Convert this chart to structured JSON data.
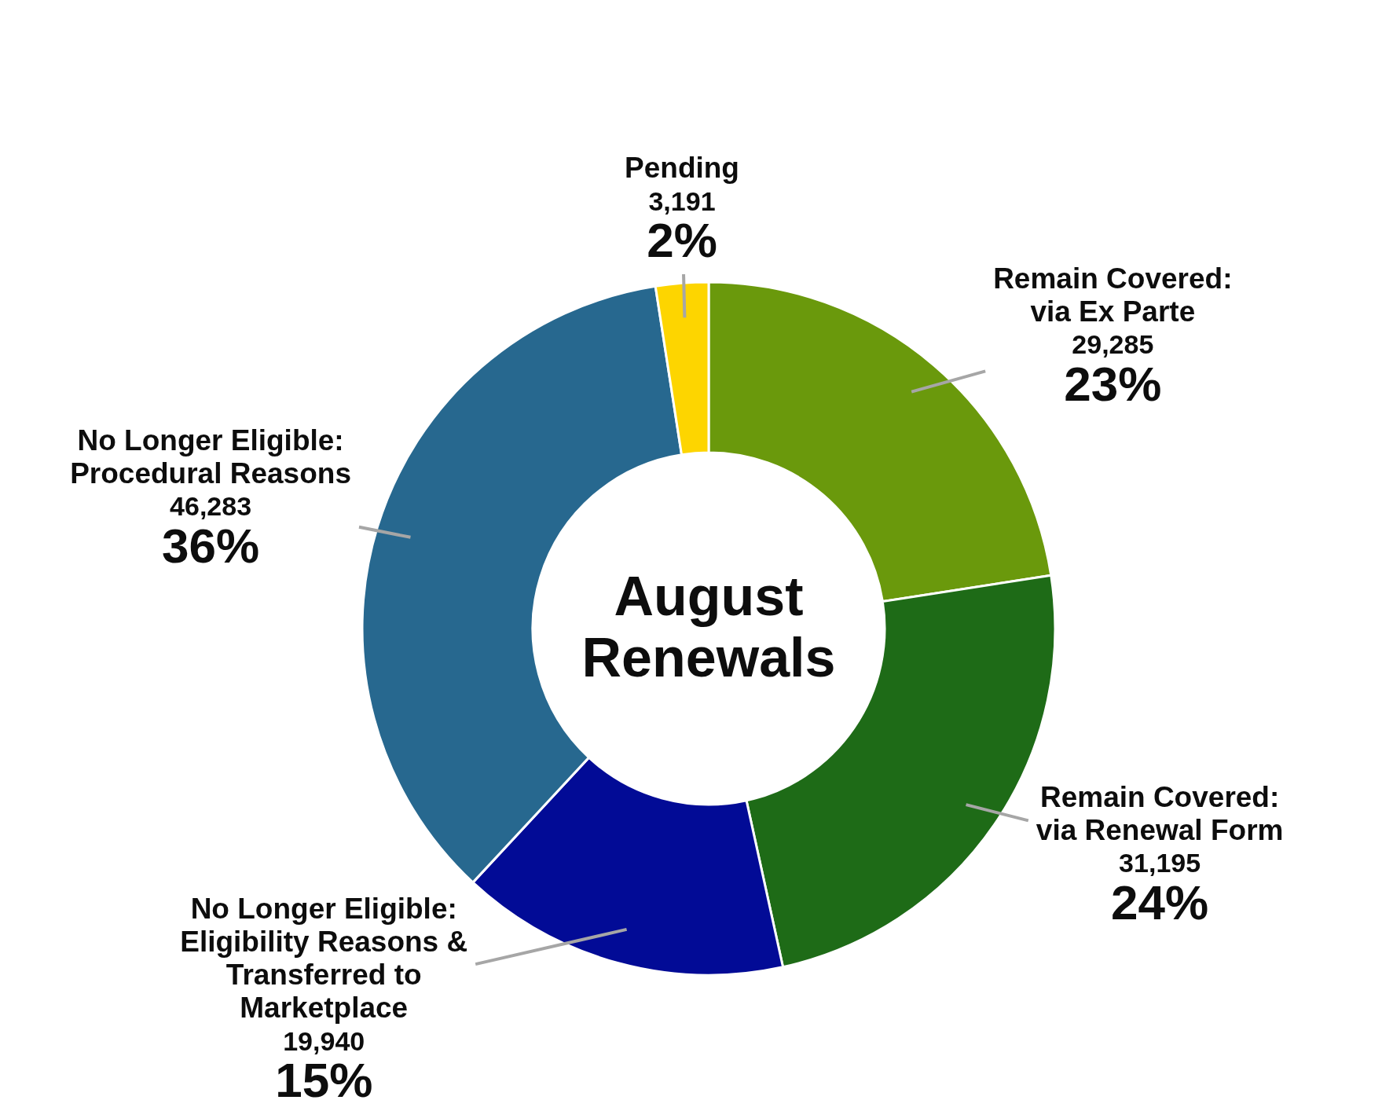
{
  "chart_data": {
    "type": "donut",
    "title": "August\nRenewals",
    "categories": [
      "Remain Covered:\nvia Ex Parte",
      "Remain Covered:\nvia Renewal Form",
      "No Longer Eligible:\nEligibility Reasons &\nTransferred to\nMarketplace",
      "No Longer Eligible:\nProcedural Reasons",
      "Pending"
    ],
    "values": [
      29285,
      31195,
      19940,
      46283,
      3191
    ],
    "colors": [
      "#6a990c",
      "#1e6b17",
      "#020b96",
      "#27688f",
      "#fdd500"
    ],
    "value_labels": [
      "29,285\n23%",
      "31,195\n24%",
      "19,940\n15%",
      "46,283\n36%",
      "3,191\n2%"
    ]
  }
}
